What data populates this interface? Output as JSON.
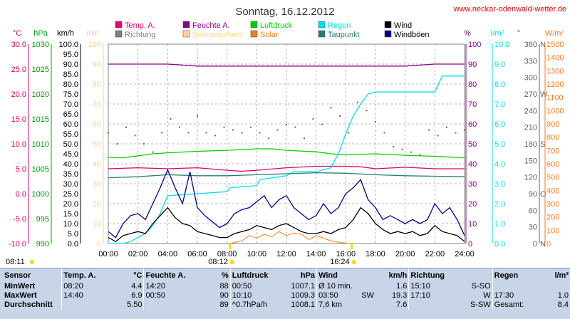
{
  "title": "Sonntag, 16.12.2012",
  "website": "www.neckar-odenwald-wetter.de",
  "colors": {
    "temp": "#e0006e",
    "feuchte": "#880088",
    "luftdruck": "#00d000",
    "regen": "#00e0f0",
    "taupunkt": "#2a7d6e",
    "wind": "#000000",
    "windboeen": "#000090",
    "richtung": "#606060",
    "sonnenschein": "#ffd090",
    "solar": "#ff7a20",
    "hpa_axis": "#00a000",
    "sun_marker": "#ffd800",
    "stats_bg": "#c8d4e8"
  },
  "legend": [
    {
      "label": "Temp. A.",
      "color": "#e0006e"
    },
    {
      "label": "Feuchte A.",
      "color": "#880088"
    },
    {
      "label": "Luftdruck",
      "color": "#00d000"
    },
    {
      "label": "Regen",
      "color": "#00e0f0"
    },
    {
      "label": "Wind",
      "color": "#000000"
    },
    {
      "label": "Richtung",
      "color": "#808080"
    },
    {
      "label": "Sonnenschein",
      "color": "#ffd090"
    },
    {
      "label": "Solar",
      "color": "#ff7a20"
    },
    {
      "label": "Taupunkt",
      "color": "#2a7d6e"
    },
    {
      "label": "Windböen",
      "color": "#000090"
    }
  ],
  "axes": {
    "temp": {
      "unit": "°C",
      "ticks": [
        "30.0",
        "25.0",
        "20.0",
        "15.0",
        "10.0",
        "5.0",
        "0.0",
        "-5.0",
        "-10.0"
      ],
      "color": "#e0006e"
    },
    "hpa": {
      "unit": "hPa",
      "ticks": [
        "1030",
        "1025",
        "1020",
        "1015",
        "1010",
        "1005",
        "1000",
        "995",
        "990"
      ],
      "color": "#00a000"
    },
    "kmh": {
      "unit": "km/h",
      "ticks": [
        "100.0",
        "95.0",
        "90.0",
        "85.0",
        "80.0",
        "75.0",
        "70.0",
        "65.0",
        "60.0",
        "55.0",
        "50.0",
        "45.0",
        "40.0",
        "35.0",
        "30.0",
        "25.0",
        "20.0",
        "15.0",
        "10.0",
        "5.0",
        "0.0"
      ],
      "color": "#000000"
    },
    "min": {
      "unit": "min",
      "ticks": [
        "100",
        "90",
        "80",
        "70",
        "60",
        "50",
        "40",
        "30",
        "20",
        "10",
        "0"
      ],
      "color": "#ffd090"
    },
    "pct": {
      "unit": "%",
      "ticks": [
        "100",
        "90",
        "80",
        "70",
        "60",
        "50",
        "40",
        "30",
        "20",
        "10",
        "0"
      ],
      "color": "#880088"
    },
    "lm2": {
      "unit": "l/m²",
      "ticks": [
        "10.0",
        "9.0",
        "8.0",
        "7.0",
        "6.0",
        "5.0",
        "4.0",
        "3.0",
        "2.0",
        "1.0",
        "0.0"
      ],
      "color": "#00e0f0"
    },
    "deg": {
      "unit": "°",
      "ticks": [
        "360",
        "330",
        "300",
        "270",
        "240",
        "210",
        "180",
        "150",
        "120",
        "90",
        "60",
        "30",
        "0"
      ],
      "color": "#606060"
    },
    "dir": {
      "ticks": [
        "N",
        "",
        "",
        "W",
        "",
        "",
        "S",
        "",
        "",
        "O",
        "",
        "",
        "N"
      ],
      "color": "#606060"
    },
    "wm2": {
      "unit": "W/m²",
      "ticks": [
        "1500",
        "1400",
        "1300",
        "1200",
        "1100",
        "1000",
        "900",
        "800",
        "700",
        "600",
        "500",
        "400",
        "300",
        "200",
        "100",
        "0"
      ],
      "color": "#ff7a20"
    }
  },
  "chart_data": {
    "type": "line",
    "x_hours_ticks": [
      "00:00",
      "02:00",
      "04:00",
      "06:00",
      "08:00",
      "10:00",
      "12:00",
      "14:00",
      "16:00",
      "18:00",
      "20:00",
      "22:00",
      "24:00"
    ],
    "xlim": [
      0,
      24
    ],
    "sunrise": "08:12",
    "sunset": "16:24",
    "sunrise_left": "08:11",
    "series": [
      {
        "name": "Temp. A.",
        "axis": "temp",
        "x": [
          0,
          2,
          4,
          6,
          8,
          9,
          10,
          12,
          14,
          15,
          16,
          17,
          18,
          20,
          22,
          24
        ],
        "values": [
          5.0,
          5.2,
          5.0,
          5.2,
          4.7,
          4.5,
          4.7,
          5.2,
          5.5,
          5.5,
          5.5,
          5.4,
          5.0,
          5.3,
          5.0,
          5.0
        ]
      },
      {
        "name": "Feuchte A.",
        "axis": "pct",
        "x": [
          0,
          2,
          4,
          6,
          8,
          10,
          12,
          14,
          16,
          18,
          20,
          22,
          24
        ],
        "values": [
          90,
          90,
          90,
          89,
          89,
          89,
          89,
          89,
          89,
          89,
          89,
          90,
          90
        ]
      },
      {
        "name": "Luftdruck",
        "axis": "hpa",
        "x": [
          0,
          1,
          2,
          3,
          4,
          6,
          8,
          10,
          11,
          12,
          14,
          15,
          16,
          18,
          20,
          22,
          24
        ],
        "values": [
          1007.3,
          1007.2,
          1007.6,
          1008.0,
          1008.2,
          1008.5,
          1008.7,
          1009.0,
          1009.0,
          1008.7,
          1008.4,
          1008.0,
          1007.8,
          1008.0,
          1007.7,
          1007.5,
          1007.2
        ]
      },
      {
        "name": "Regen",
        "axis": "lm2",
        "x": [
          0,
          1,
          1.5,
          2,
          2.5,
          3,
          3.5,
          4,
          6,
          8,
          8.2,
          10,
          10.2,
          12,
          12.5,
          14,
          15,
          15.5,
          16,
          16.5,
          17,
          17.5,
          18,
          20,
          22,
          22.5,
          24
        ],
        "values": [
          0,
          0,
          0.1,
          0.3,
          0.5,
          0.9,
          1.5,
          2.4,
          2.5,
          2.6,
          2.8,
          2.9,
          3.2,
          3.4,
          3.6,
          3.6,
          3.8,
          4.5,
          5.5,
          6.4,
          7.0,
          7.5,
          7.6,
          7.6,
          7.6,
          8.4,
          8.4
        ]
      },
      {
        "name": "Taupunkt",
        "axis": "temp",
        "x": [
          0,
          2,
          4,
          6,
          8,
          10,
          12,
          14,
          16,
          18,
          20,
          22,
          24
        ],
        "values": [
          3.2,
          3.4,
          3.8,
          3.6,
          3.6,
          3.8,
          4.0,
          4.2,
          4.1,
          3.8,
          3.6,
          3.5,
          3.4
        ]
      },
      {
        "name": "Wind",
        "axis": "kmh",
        "x": [
          0,
          0.5,
          1,
          1.5,
          2,
          2.5,
          3,
          3.5,
          4,
          4.5,
          5,
          5.5,
          6,
          6.5,
          7,
          7.5,
          8,
          8.5,
          9,
          9.5,
          10,
          10.5,
          11,
          11.5,
          12,
          12.5,
          13,
          13.5,
          14,
          14.5,
          15,
          15.5,
          16,
          16.5,
          17,
          17.5,
          18,
          18.5,
          19,
          19.5,
          20,
          20.5,
          21,
          21.5,
          22,
          22.5,
          23,
          23.5,
          24
        ],
        "values": [
          3,
          1,
          4,
          5,
          6,
          5,
          10,
          14,
          18,
          13,
          10,
          9,
          6,
          5,
          4,
          3,
          3,
          5,
          6,
          7,
          9,
          8,
          7,
          9,
          10,
          8,
          6,
          5,
          5,
          6,
          5,
          7,
          8,
          12,
          18,
          15,
          10,
          7,
          5,
          6,
          5,
          6,
          4,
          5,
          9,
          6,
          5,
          4,
          1
        ]
      },
      {
        "name": "Windböen",
        "axis": "kmh",
        "x": [
          0,
          0.5,
          1,
          1.5,
          2,
          2.5,
          3,
          3.5,
          4,
          4.5,
          5,
          5.5,
          6,
          6.5,
          7,
          7.5,
          8,
          8.5,
          9,
          9.5,
          10,
          10.5,
          11,
          11.5,
          12,
          12.5,
          13,
          13.5,
          14,
          14.5,
          15,
          15.5,
          16,
          16.5,
          17,
          17.5,
          18,
          18.5,
          19,
          19.5,
          20,
          20.5,
          21,
          21.5,
          22,
          22.5,
          23,
          23.5,
          24
        ],
        "values": [
          6,
          3,
          10,
          14,
          15,
          12,
          20,
          28,
          37,
          28,
          20,
          36,
          18,
          14,
          11,
          8,
          10,
          15,
          17,
          18,
          21,
          24,
          18,
          22,
          24,
          18,
          15,
          12,
          14,
          20,
          15,
          18,
          25,
          28,
          32,
          22,
          18,
          12,
          14,
          12,
          10,
          12,
          10,
          12,
          20,
          15,
          18,
          12,
          4
        ]
      },
      {
        "name": "Solar",
        "axis": "wm2",
        "x": [
          8.2,
          9,
          9.5,
          10,
          10.5,
          11,
          11.5,
          12,
          12.5,
          13,
          13.5,
          14,
          14.5,
          15,
          15.5,
          16.2
        ],
        "values": [
          0,
          20,
          60,
          40,
          70,
          50,
          90,
          60,
          80,
          70,
          30,
          60,
          40,
          20,
          10,
          0
        ]
      },
      {
        "name": "Richtung",
        "axis": "deg",
        "type": "scatter",
        "x": [
          0,
          0.6,
          1.2,
          1.8,
          2.4,
          3,
          3.6,
          4.2,
          4.8,
          5.4,
          6,
          6.6,
          7.2,
          7.8,
          8.4,
          9,
          9.6,
          10.2,
          10.8,
          11.4,
          12,
          12.6,
          13.2,
          13.8,
          14.4,
          15,
          15.6,
          16.2,
          16.8,
          17.4,
          18,
          18.6,
          19.2,
          19.8,
          20.4,
          21,
          21.6,
          22.2,
          22.8,
          23.4,
          24
        ],
        "values": [
          200,
          180,
          210,
          195,
          180,
          165,
          200,
          225,
          210,
          200,
          230,
          200,
          195,
          210,
          205,
          200,
          210,
          200,
          190,
          205,
          215,
          210,
          190,
          225,
          215,
          245,
          230,
          200,
          255,
          240,
          220,
          200,
          175,
          170,
          165,
          160,
          205,
          195,
          210,
          200,
          205
        ]
      }
    ]
  },
  "stats": {
    "header": {
      "sensor": "Sensor",
      "temp": "Temp. A.",
      "temp_unit": "°C",
      "feuchte": "Feuchte A.",
      "feuchte_unit": "%",
      "luftdruck": "Luftdruck",
      "luftdruck_unit": "hPa",
      "wind": "Wind",
      "wind_unit": "km/h",
      "richtung": "Richtung",
      "regen": "Regen",
      "regen_unit": "l/m²"
    },
    "rows": [
      {
        "label": "MinWert",
        "temp_time": "08:20",
        "temp_val": "4.4",
        "feuchte_time": "14:20",
        "feuchte_val": "88",
        "druck_time": "00:50",
        "druck_val": "1007.1",
        "wind_a": "Ø 10 min.",
        "wind_b": "",
        "wind_val": "1.6",
        "richt_time": "15:10",
        "richt_val": "S-SO",
        "regen_time": "",
        "regen_val": ""
      },
      {
        "label": "MaxWert",
        "temp_time": "14:40",
        "temp_val": "6.9",
        "feuchte_time": "00:50",
        "feuchte_val": "90",
        "druck_time": "10:10",
        "druck_val": "1009.3",
        "wind_a": "03:50",
        "wind_b": "SW",
        "wind_val": "19.3",
        "richt_time": "17:10",
        "richt_val": "W",
        "regen_time": "17:30",
        "regen_val": "1.0"
      },
      {
        "label": "Durchschnitt",
        "temp_time": "",
        "temp_val": "5.50",
        "feuchte_time": "",
        "feuchte_val": "89",
        "druck_time": "^0.7hPa/h",
        "druck_val": "1008.1",
        "wind_a": "7,6 km",
        "wind_b": "",
        "wind_val": "7.6",
        "richt_time": "",
        "richt_val": "S-SW",
        "regen_time": "Gesamt:",
        "regen_val": "8.4"
      }
    ]
  }
}
